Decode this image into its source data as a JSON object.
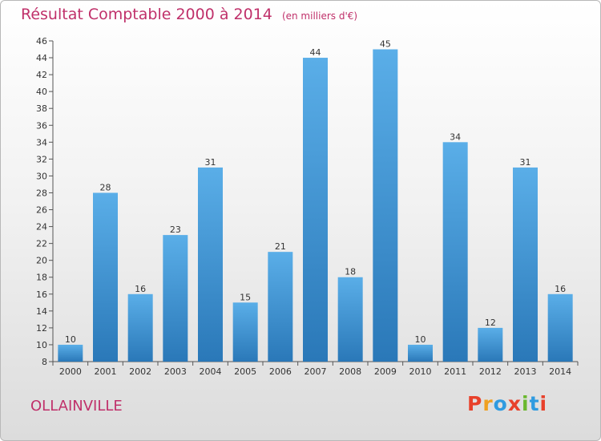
{
  "header": {
    "title": "Résultat Comptable 2000 à 2014",
    "unit": "(en milliers d'€)"
  },
  "footer": {
    "location": "OLLAINVILLE",
    "brand": "Proxiti",
    "brand_colors": [
      "#e8412b",
      "#f0a020",
      "#2f9be0",
      "#e8412b",
      "#6ab82e",
      "#2f9be0",
      "#e8412b"
    ]
  },
  "chart_data": {
    "type": "bar",
    "title": "Résultat Comptable 2000 à 2014",
    "ylabel": "en milliers d'€",
    "xlabel": "",
    "categories": [
      "2000",
      "2001",
      "2002",
      "2003",
      "2004",
      "2005",
      "2006",
      "2007",
      "2008",
      "2009",
      "2010",
      "2011",
      "2012",
      "2013",
      "2014"
    ],
    "values": [
      10,
      28,
      16,
      23,
      31,
      15,
      21,
      44,
      18,
      45,
      10,
      34,
      12,
      31,
      16
    ],
    "ylim": [
      8,
      46
    ],
    "yticks": [
      8,
      10,
      12,
      14,
      16,
      18,
      20,
      22,
      24,
      26,
      28,
      30,
      32,
      34,
      36,
      38,
      40,
      42,
      44,
      46
    ],
    "grid": false,
    "bar_color_top": "#5aaee8",
    "bar_color_bottom": "#2a78b8"
  }
}
